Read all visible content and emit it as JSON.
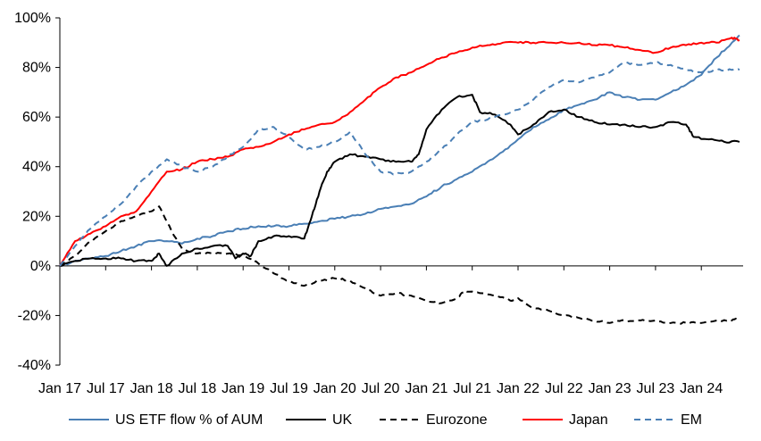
{
  "chart_data": {
    "type": "line",
    "title": "",
    "xlabel": "",
    "ylabel": "",
    "ylim": [
      -40,
      100
    ],
    "y_ticks": [
      "100%",
      "80%",
      "60%",
      "40%",
      "20%",
      "0%",
      "-20%",
      "-40%"
    ],
    "y_tick_values": [
      100,
      80,
      60,
      40,
      20,
      0,
      -20,
      -40
    ],
    "x_ticks": [
      "Jan 17",
      "Jul 17",
      "Jan 18",
      "Jul 18",
      "Jan 19",
      "Jul 19",
      "Jan 20",
      "Jul 20",
      "Jan 21",
      "Jul 21",
      "Jan 22",
      "Jul 22",
      "Jan 23",
      "Jul 23",
      "Jan 24"
    ],
    "xlim": [
      "2017-01",
      "2024-07"
    ],
    "grid": false,
    "legend_position": "bottom",
    "series": [
      {
        "name": "US ETF flow % of AUM",
        "color": "#4a7fb5",
        "dash": "solid",
        "points": [
          [
            "2017-01",
            0
          ],
          [
            "2017-03",
            2
          ],
          [
            "2017-05",
            3
          ],
          [
            "2017-07",
            4
          ],
          [
            "2017-09",
            6
          ],
          [
            "2017-11",
            8
          ],
          [
            "2018-01",
            10
          ],
          [
            "2018-03",
            10
          ],
          [
            "2018-05",
            9
          ],
          [
            "2018-07",
            11
          ],
          [
            "2018-09",
            12
          ],
          [
            "2018-11",
            14
          ],
          [
            "2019-01",
            15
          ],
          [
            "2019-03",
            16
          ],
          [
            "2019-05",
            16
          ],
          [
            "2019-07",
            16
          ],
          [
            "2019-09",
            17
          ],
          [
            "2019-11",
            18
          ],
          [
            "2020-01",
            19
          ],
          [
            "2020-03",
            20
          ],
          [
            "2020-05",
            21
          ],
          [
            "2020-07",
            23
          ],
          [
            "2020-09",
            24
          ],
          [
            "2020-11",
            25
          ],
          [
            "2021-01",
            28
          ],
          [
            "2021-03",
            32
          ],
          [
            "2021-05",
            35
          ],
          [
            "2021-07",
            38
          ],
          [
            "2021-09",
            42
          ],
          [
            "2021-11",
            46
          ],
          [
            "2022-01",
            51
          ],
          [
            "2022-03",
            56
          ],
          [
            "2022-05",
            59
          ],
          [
            "2022-07",
            63
          ],
          [
            "2022-09",
            65
          ],
          [
            "2022-11",
            67
          ],
          [
            "2023-01",
            70
          ],
          [
            "2023-03",
            68
          ],
          [
            "2023-05",
            67
          ],
          [
            "2023-07",
            67
          ],
          [
            "2023-09",
            70
          ],
          [
            "2023-11",
            73
          ],
          [
            "2024-01",
            77
          ],
          [
            "2024-03",
            84
          ],
          [
            "2024-05",
            90
          ],
          [
            "2024-06",
            93
          ]
        ]
      },
      {
        "name": "UK",
        "color": "#000000",
        "dash": "solid",
        "points": [
          [
            "2017-01",
            0
          ],
          [
            "2017-03",
            2
          ],
          [
            "2017-05",
            3
          ],
          [
            "2017-07",
            3
          ],
          [
            "2017-09",
            3
          ],
          [
            "2017-11",
            2
          ],
          [
            "2018-01",
            2
          ],
          [
            "2018-02",
            5
          ],
          [
            "2018-03",
            0
          ],
          [
            "2018-05",
            5
          ],
          [
            "2018-07",
            7
          ],
          [
            "2018-09",
            8
          ],
          [
            "2018-11",
            8
          ],
          [
            "2018-12",
            3
          ],
          [
            "2019-01",
            5
          ],
          [
            "2019-02",
            4
          ],
          [
            "2019-03",
            10
          ],
          [
            "2019-05",
            12
          ],
          [
            "2019-07",
            12
          ],
          [
            "2019-09",
            11
          ],
          [
            "2019-10",
            20
          ],
          [
            "2019-11",
            30
          ],
          [
            "2019-12",
            38
          ],
          [
            "2020-01",
            42
          ],
          [
            "2020-03",
            45
          ],
          [
            "2020-05",
            44
          ],
          [
            "2020-07",
            43
          ],
          [
            "2020-09",
            42
          ],
          [
            "2020-11",
            42
          ],
          [
            "2020-12",
            45
          ],
          [
            "2021-01",
            55
          ],
          [
            "2021-03",
            63
          ],
          [
            "2021-05",
            68
          ],
          [
            "2021-07",
            69
          ],
          [
            "2021-08",
            62
          ],
          [
            "2021-10",
            61
          ],
          [
            "2021-12",
            57
          ],
          [
            "2022-01",
            53
          ],
          [
            "2022-03",
            57
          ],
          [
            "2022-05",
            62
          ],
          [
            "2022-07",
            63
          ],
          [
            "2022-09",
            60
          ],
          [
            "2022-11",
            58
          ],
          [
            "2023-01",
            57
          ],
          [
            "2023-03",
            57
          ],
          [
            "2023-05",
            56
          ],
          [
            "2023-07",
            56
          ],
          [
            "2023-09",
            58
          ],
          [
            "2023-11",
            57
          ],
          [
            "2023-12",
            52
          ],
          [
            "2024-02",
            51
          ],
          [
            "2024-04",
            50
          ],
          [
            "2024-06",
            50
          ]
        ]
      },
      {
        "name": "Eurozone",
        "color": "#000000",
        "dash": "dashed",
        "points": [
          [
            "2017-01",
            0
          ],
          [
            "2017-03",
            4
          ],
          [
            "2017-05",
            10
          ],
          [
            "2017-07",
            14
          ],
          [
            "2017-09",
            18
          ],
          [
            "2017-11",
            20
          ],
          [
            "2018-01",
            22
          ],
          [
            "2018-02",
            24
          ],
          [
            "2018-03",
            18
          ],
          [
            "2018-04",
            12
          ],
          [
            "2018-05",
            7
          ],
          [
            "2018-07",
            5
          ],
          [
            "2018-09",
            5
          ],
          [
            "2018-11",
            5
          ],
          [
            "2019-01",
            4
          ],
          [
            "2019-03",
            1
          ],
          [
            "2019-05",
            -3
          ],
          [
            "2019-07",
            -6
          ],
          [
            "2019-09",
            -8
          ],
          [
            "2019-11",
            -6
          ],
          [
            "2020-01",
            -5
          ],
          [
            "2020-03",
            -6
          ],
          [
            "2020-05",
            -9
          ],
          [
            "2020-07",
            -12
          ],
          [
            "2020-09",
            -11
          ],
          [
            "2020-11",
            -12
          ],
          [
            "2021-01",
            -14
          ],
          [
            "2021-03",
            -15
          ],
          [
            "2021-05",
            -13
          ],
          [
            "2021-06",
            -10
          ],
          [
            "2021-08",
            -11
          ],
          [
            "2021-10",
            -12
          ],
          [
            "2021-12",
            -14
          ],
          [
            "2022-01",
            -13
          ],
          [
            "2022-03",
            -17
          ],
          [
            "2022-05",
            -18
          ],
          [
            "2022-07",
            -20
          ],
          [
            "2022-09",
            -21
          ],
          [
            "2022-11",
            -22
          ],
          [
            "2023-01",
            -23
          ],
          [
            "2023-03",
            -22
          ],
          [
            "2023-05",
            -22
          ],
          [
            "2023-07",
            -22
          ],
          [
            "2023-09",
            -23
          ],
          [
            "2023-11",
            -23
          ],
          [
            "2024-01",
            -23
          ],
          [
            "2024-03",
            -22
          ],
          [
            "2024-05",
            -22
          ],
          [
            "2024-06",
            -21
          ]
        ]
      },
      {
        "name": "Japan",
        "color": "#ff0000",
        "dash": "solid",
        "points": [
          [
            "2017-01",
            0
          ],
          [
            "2017-03",
            10
          ],
          [
            "2017-05",
            13
          ],
          [
            "2017-07",
            16
          ],
          [
            "2017-09",
            20
          ],
          [
            "2017-11",
            22
          ],
          [
            "2018-01",
            30
          ],
          [
            "2018-03",
            38
          ],
          [
            "2018-05",
            39
          ],
          [
            "2018-07",
            42
          ],
          [
            "2018-09",
            43
          ],
          [
            "2018-11",
            44
          ],
          [
            "2019-01",
            47
          ],
          [
            "2019-03",
            48
          ],
          [
            "2019-05",
            50
          ],
          [
            "2019-07",
            53
          ],
          [
            "2019-09",
            55
          ],
          [
            "2019-11",
            57
          ],
          [
            "2020-01",
            58
          ],
          [
            "2020-03",
            62
          ],
          [
            "2020-05",
            67
          ],
          [
            "2020-07",
            72
          ],
          [
            "2020-09",
            76
          ],
          [
            "2020-11",
            78
          ],
          [
            "2021-01",
            81
          ],
          [
            "2021-03",
            84
          ],
          [
            "2021-05",
            86
          ],
          [
            "2021-07",
            88
          ],
          [
            "2021-09",
            89
          ],
          [
            "2021-11",
            90
          ],
          [
            "2022-01",
            90
          ],
          [
            "2022-03",
            90
          ],
          [
            "2022-05",
            90
          ],
          [
            "2022-07",
            90
          ],
          [
            "2022-09",
            90
          ],
          [
            "2022-11",
            89
          ],
          [
            "2023-01",
            89
          ],
          [
            "2023-03",
            88
          ],
          [
            "2023-05",
            87
          ],
          [
            "2023-07",
            86
          ],
          [
            "2023-09",
            88
          ],
          [
            "2023-11",
            89
          ],
          [
            "2024-01",
            90
          ],
          [
            "2024-03",
            90
          ],
          [
            "2024-05",
            92
          ],
          [
            "2024-06",
            91
          ]
        ]
      },
      {
        "name": "EM",
        "color": "#4a7fb5",
        "dash": "dashed",
        "points": [
          [
            "2017-01",
            0
          ],
          [
            "2017-03",
            8
          ],
          [
            "2017-05",
            15
          ],
          [
            "2017-07",
            20
          ],
          [
            "2017-09",
            25
          ],
          [
            "2017-11",
            32
          ],
          [
            "2018-01",
            38
          ],
          [
            "2018-03",
            43
          ],
          [
            "2018-05",
            40
          ],
          [
            "2018-07",
            38
          ],
          [
            "2018-09",
            40
          ],
          [
            "2018-11",
            44
          ],
          [
            "2019-01",
            48
          ],
          [
            "2019-03",
            55
          ],
          [
            "2019-05",
            56
          ],
          [
            "2019-07",
            52
          ],
          [
            "2019-09",
            47
          ],
          [
            "2019-11",
            48
          ],
          [
            "2020-01",
            50
          ],
          [
            "2020-03",
            54
          ],
          [
            "2020-05",
            45
          ],
          [
            "2020-07",
            38
          ],
          [
            "2020-09",
            37
          ],
          [
            "2020-11",
            38
          ],
          [
            "2021-01",
            42
          ],
          [
            "2021-03",
            47
          ],
          [
            "2021-05",
            53
          ],
          [
            "2021-07",
            58
          ],
          [
            "2021-09",
            59
          ],
          [
            "2021-11",
            61
          ],
          [
            "2022-01",
            63
          ],
          [
            "2022-03",
            67
          ],
          [
            "2022-05",
            72
          ],
          [
            "2022-07",
            75
          ],
          [
            "2022-09",
            74
          ],
          [
            "2022-11",
            76
          ],
          [
            "2023-01",
            78
          ],
          [
            "2023-03",
            82
          ],
          [
            "2023-05",
            81
          ],
          [
            "2023-07",
            82
          ],
          [
            "2023-09",
            81
          ],
          [
            "2023-11",
            79
          ],
          [
            "2024-01",
            78
          ],
          [
            "2024-03",
            79
          ],
          [
            "2024-05",
            79
          ],
          [
            "2024-06",
            79
          ]
        ]
      }
    ]
  }
}
